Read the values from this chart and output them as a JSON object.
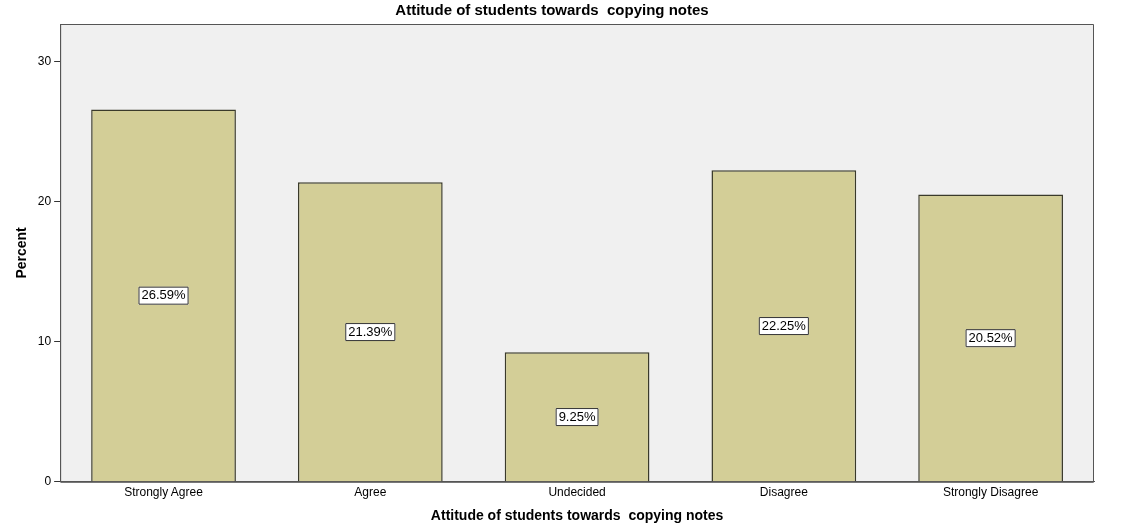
{
  "chart_data": {
    "type": "bar",
    "title": "Attitude of students towards  copying notes",
    "xlabel": "Attitude of students towards  copying notes",
    "ylabel": "Percent",
    "categories": [
      "Strongly Agree",
      "Agree",
      "Undecided",
      "Disagree",
      "Strongly Disagree"
    ],
    "values": [
      26.59,
      21.39,
      9.25,
      22.25,
      20.52
    ],
    "value_labels": [
      "26.59%",
      "21.39%",
      "9.25%",
      "22.25%",
      "20.52%"
    ],
    "color": "#d3ce97",
    "ylim": [
      0,
      32.7
    ],
    "yticks": [
      0,
      10,
      20,
      30
    ],
    "grid": false,
    "legend": false
  }
}
